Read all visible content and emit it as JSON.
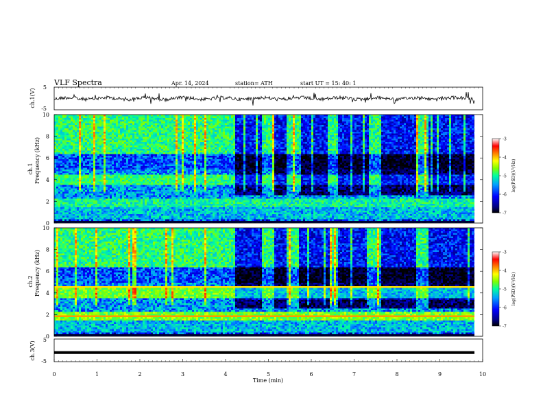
{
  "header": {
    "title": "VLF  Spectra",
    "date": "Apr. 14, 2024",
    "station": "station= ATH",
    "start": "start  UT  =    15: 40: 1"
  },
  "chart_data": [
    {
      "type": "line",
      "name": "ch1-waveform",
      "ylabel": "ch.1(V)",
      "ylim": [
        -5,
        5
      ],
      "y_ticks": [
        "5",
        "-5"
      ],
      "xlim": [
        0,
        10
      ]
    },
    {
      "type": "heatmap",
      "name": "ch1-spectrogram",
      "ylabel": "Frequency  (kHz)",
      "channel_label": "ch.1",
      "ylim": [
        0,
        10
      ],
      "y_ticks": [
        "0",
        "2",
        "4",
        "6",
        "8",
        "10"
      ],
      "xlim": [
        0,
        10
      ],
      "colorbar": {
        "label": "log(PSD)(V²/Hz)",
        "range": [
          -7,
          -3
        ],
        "ticks": [
          "-3",
          "-4",
          "-5",
          "-6",
          "-7"
        ]
      }
    },
    {
      "type": "heatmap",
      "name": "ch2-spectrogram",
      "ylabel": "Frequency  (kHz)",
      "channel_label": "ch.2",
      "ylim": [
        0,
        10
      ],
      "y_ticks": [
        "0",
        "2",
        "4",
        "6",
        "8",
        "10"
      ],
      "xlim": [
        0,
        10
      ],
      "colorbar": {
        "label": "log(PSD)(V²/Hz)",
        "range": [
          -7,
          -3
        ],
        "ticks": [
          "-3",
          "-4",
          "-5",
          "-6",
          "-7"
        ]
      }
    },
    {
      "type": "line",
      "name": "ch3-waveform",
      "ylabel": "ch.3(V)",
      "ylim": [
        -5,
        5
      ],
      "y_ticks": [
        "5",
        "-5"
      ],
      "xlim": [
        0,
        10
      ],
      "x_ticks": [
        "0",
        "1",
        "2",
        "3",
        "4",
        "5",
        "6",
        "7",
        "8",
        "9",
        "10"
      ],
      "xlabel": "Time  (min)",
      "level": -1
    }
  ],
  "colors": {
    "spectrogram_scale": [
      "#000000",
      "#000080",
      "#0000ff",
      "#00a0ff",
      "#00ffa0",
      "#80ff00",
      "#ffff00",
      "#ff8000",
      "#ff0000",
      "#ffffff"
    ]
  }
}
